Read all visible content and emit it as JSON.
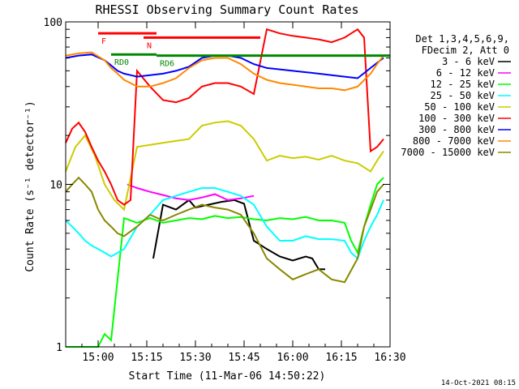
{
  "chart_data": {
    "type": "line",
    "title": "RHESSI Observing Summary Count Rates",
    "xlabel": "Start Time (11-Mar-06 14:50:22)",
    "ylabel": "Count Rate (s⁻¹ detector⁻¹)",
    "yscale": "log",
    "ylim": [
      1,
      100
    ],
    "xlim_minutes": [
      0,
      100
    ],
    "x_ticks": [
      {
        "label": "15:00",
        "minute": 10
      },
      {
        "label": "15:15",
        "minute": 25
      },
      {
        "label": "15:30",
        "minute": 40
      },
      {
        "label": "15:45",
        "minute": 55
      },
      {
        "label": "16:00",
        "minute": 70
      },
      {
        "label": "16:15",
        "minute": 85
      },
      {
        "label": "16:30",
        "minute": 100
      }
    ],
    "y_ticks": [
      {
        "label": "1",
        "value": 1
      },
      {
        "label": "10",
        "value": 10
      },
      {
        "label": "100",
        "value": 100
      }
    ],
    "legend_header": [
      "Det 1,3,4,5,6,9,",
      "FDecim 2, Att 0"
    ],
    "legend_position": "right",
    "series": [
      {
        "name": "3 - 6 keV",
        "color": "#000000",
        "x": [
          27,
          30,
          34,
          38,
          40,
          44,
          48,
          52,
          55,
          58,
          62,
          66,
          70,
          74,
          76,
          78,
          80
        ],
        "y": [
          3.5,
          7.5,
          7,
          8,
          7.2,
          7.5,
          7.8,
          8,
          7.6,
          4.5,
          4,
          3.6,
          3.4,
          3.6,
          3.5,
          3,
          3
        ]
      },
      {
        "name": "6 - 12 keV",
        "color": "#ff00ff",
        "x": [
          19,
          22,
          26,
          30,
          34,
          38,
          42,
          46,
          50,
          54,
          58
        ],
        "y": [
          10,
          9.5,
          9,
          8.6,
          8.2,
          8,
          8.3,
          8.7,
          8,
          8.2,
          8.5
        ]
      },
      {
        "name": "12 - 25 keV",
        "color": "#00ff00",
        "x": [
          0,
          4,
          6,
          8,
          10,
          12,
          14,
          18,
          22,
          26,
          30,
          34,
          38,
          42,
          46,
          50,
          54,
          58,
          62,
          66,
          70,
          74,
          78,
          82,
          86,
          88,
          90,
          92,
          94,
          96,
          98
        ],
        "y": [
          1,
          1,
          1,
          1,
          1,
          1.2,
          1.1,
          6.2,
          5.8,
          6.2,
          5.8,
          6,
          6.2,
          6.1,
          6.4,
          6.2,
          6.3,
          6.1,
          6,
          6.2,
          6.1,
          6.3,
          6,
          6,
          5.8,
          4.5,
          3.8,
          5.5,
          7.5,
          10,
          11
        ]
      },
      {
        "name": "25 - 50 keV",
        "color": "#00ffff",
        "x": [
          0,
          2,
          4,
          6,
          8,
          10,
          12,
          14,
          18,
          22,
          26,
          30,
          34,
          38,
          42,
          46,
          50,
          54,
          58,
          62,
          66,
          70,
          74,
          78,
          82,
          86,
          88,
          90,
          92,
          94,
          96,
          98
        ],
        "y": [
          6,
          5.5,
          5,
          4.5,
          4.2,
          4,
          3.8,
          3.6,
          4,
          5.5,
          6.5,
          8,
          8.5,
          9,
          9.5,
          9.5,
          9,
          8.5,
          7.5,
          5.5,
          4.5,
          4.5,
          4.8,
          4.6,
          4.6,
          4.5,
          3.8,
          3.5,
          4.5,
          5.5,
          6.5,
          8
        ]
      },
      {
        "name": "50 - 100 keV",
        "color": "#cccc00",
        "x": [
          0,
          3,
          6,
          9,
          12,
          15,
          18,
          22,
          26,
          30,
          34,
          38,
          42,
          46,
          50,
          54,
          58,
          62,
          66,
          70,
          74,
          78,
          82,
          86,
          90,
          94,
          96,
          98
        ],
        "y": [
          12,
          17,
          20,
          15,
          10,
          8,
          7,
          17,
          17.5,
          18,
          18.5,
          19,
          23,
          24,
          24.5,
          23,
          19,
          14,
          15,
          14.5,
          14.8,
          14.2,
          15,
          14,
          13.5,
          12,
          14,
          16
        ]
      },
      {
        "name": "100 - 300 keV",
        "color": "#ff0000",
        "x": [
          0,
          2,
          4,
          6,
          8,
          10,
          12,
          14,
          16,
          18,
          20,
          22,
          26,
          30,
          34,
          38,
          42,
          46,
          50,
          54,
          58,
          62,
          66,
          70,
          74,
          78,
          82,
          86,
          88,
          90,
          92,
          94,
          96,
          98
        ],
        "y": [
          18,
          22,
          24,
          21,
          17,
          14,
          12,
          10,
          8,
          7.5,
          8,
          50,
          40,
          33,
          32,
          34,
          40,
          42,
          42,
          40,
          36,
          90,
          85,
          82,
          80,
          78,
          75,
          80,
          85,
          90,
          80,
          16,
          17,
          19
        ]
      },
      {
        "name": "300 - 800 keV",
        "color": "#0000ff",
        "x": [
          0,
          4,
          8,
          12,
          14,
          16,
          18,
          20,
          22,
          26,
          30,
          34,
          38,
          42,
          46,
          50,
          54,
          58,
          62,
          66,
          70,
          74,
          78,
          82,
          86,
          90,
          94,
          96,
          98
        ],
        "y": [
          60,
          62,
          63,
          58,
          54,
          50,
          48,
          47,
          46,
          47,
          48,
          50,
          53,
          60,
          62,
          62,
          60,
          55,
          52,
          51,
          50,
          49,
          48,
          47,
          46,
          45,
          52,
          56,
          60
        ]
      },
      {
        "name": "800 - 7000 keV",
        "color": "#ff8800",
        "x": [
          0,
          4,
          8,
          12,
          14,
          16,
          18,
          20,
          22,
          26,
          30,
          34,
          38,
          42,
          46,
          50,
          54,
          58,
          62,
          66,
          70,
          74,
          78,
          82,
          86,
          90,
          94,
          96,
          98
        ],
        "y": [
          62,
          64,
          65,
          58,
          52,
          48,
          44,
          42,
          40,
          40,
          42,
          45,
          52,
          58,
          60,
          60,
          55,
          48,
          44,
          42,
          41,
          40,
          39,
          39,
          38,
          40,
          48,
          55,
          62
        ]
      },
      {
        "name": "7000 - 15000 keV",
        "color": "#888800",
        "x": [
          0,
          2,
          4,
          6,
          8,
          10,
          12,
          14,
          16,
          18,
          22,
          26,
          30,
          34,
          38,
          42,
          46,
          50,
          54,
          58,
          62,
          66,
          70,
          74,
          78,
          82,
          86,
          90,
          92,
          94,
          96,
          98
        ],
        "y": [
          9,
          10,
          11,
          10,
          9,
          7,
          6,
          5.5,
          5,
          4.8,
          5.5,
          6.5,
          6,
          6.5,
          7,
          7.5,
          7.2,
          7,
          6.5,
          5,
          3.5,
          3,
          2.6,
          2.8,
          3,
          2.6,
          2.5,
          3.5,
          5.5,
          7,
          9,
          10
        ]
      }
    ],
    "annotations": [
      {
        "label": "RD0",
        "color": "#008800",
        "x": [
          14,
          28
        ],
        "y": 63
      },
      {
        "label": "RD6",
        "color": "#008800",
        "x": [
          28,
          100
        ],
        "y": 62
      },
      {
        "label": "N",
        "color": "#ff0000",
        "x": [
          24,
          60
        ],
        "y": 80
      },
      {
        "label": "F",
        "color": "#ff0000",
        "x": [
          10,
          28
        ],
        "y": 85
      }
    ],
    "footer_timestamp": "14-Oct-2021 08:15"
  }
}
